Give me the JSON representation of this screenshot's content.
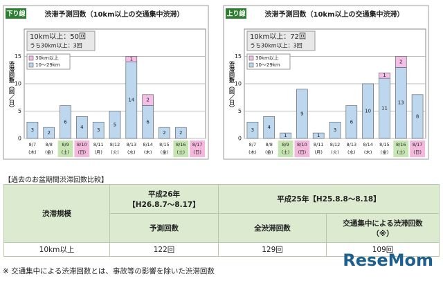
{
  "chart_data": [
    {
      "type": "bar",
      "stacked": true,
      "badge": "下り線",
      "title": "渋滞予測回数（10km以上の交通集中渋滞）",
      "summary": [
        "10km以上：50回",
        "うち30km以上：3回"
      ],
      "ylabel": "渋滞回数（回／日）",
      "categories": [
        "8/7",
        "8/8",
        "8/9",
        "8/10",
        "8/11",
        "8/12",
        "8/13",
        "8/14",
        "8/15",
        "8/16",
        "8/17"
      ],
      "weekdays": [
        "(木)",
        "(金)",
        "(土)",
        "(日)",
        "(月)",
        "(火)",
        "(水)",
        "(木)",
        "(金)",
        "(土)",
        "(日)"
      ],
      "category_colors": [
        null,
        null,
        "#c6e5b3",
        "#f4b8dd",
        null,
        null,
        null,
        null,
        null,
        "#c6e5b3",
        "#f4b8dd"
      ],
      "series": [
        {
          "name": "10～29km",
          "color": "#bdd7ee",
          "values": [
            3,
            2,
            6,
            4,
            3,
            5,
            14,
            6,
            2,
            2,
            0
          ]
        },
        {
          "name": "30km以上",
          "color": "#f4bfe6",
          "values": [
            0,
            0,
            0,
            0,
            0,
            0,
            1,
            2,
            0,
            0,
            0
          ]
        }
      ],
      "ylim": [
        0,
        20
      ],
      "yticks": [
        0,
        5,
        10,
        15
      ],
      "grid": true
    },
    {
      "type": "bar",
      "stacked": true,
      "badge": "上り線",
      "title": "渋滞予測回数（10km以上の交通集中渋滞）",
      "summary": [
        "10km以上：72回",
        "うち30km以上：3回"
      ],
      "ylabel": "渋滞回数（回／日）",
      "categories": [
        "8/7",
        "8/8",
        "8/9",
        "8/10",
        "8/11",
        "8/12",
        "8/13",
        "8/14",
        "8/15",
        "8/16",
        "8/17"
      ],
      "weekdays": [
        "(木)",
        "(金)",
        "(土)",
        "(日)",
        "(月)",
        "(火)",
        "(水)",
        "(木)",
        "(金)",
        "(土)",
        "(日)"
      ],
      "category_colors": [
        null,
        null,
        "#c6e5b3",
        "#f4b8dd",
        null,
        null,
        null,
        null,
        null,
        "#c6e5b3",
        "#f4b8dd"
      ],
      "series": [
        {
          "name": "10～29km",
          "color": "#bdd7ee",
          "values": [
            3,
            4,
            1,
            9,
            1,
            3,
            6,
            10,
            11,
            13,
            8
          ]
        },
        {
          "name": "30km以上",
          "color": "#f4bfe6",
          "values": [
            0,
            0,
            0,
            0,
            0,
            0,
            0,
            0,
            1,
            2,
            0
          ]
        }
      ],
      "ylim": [
        0,
        20
      ],
      "yticks": [
        0,
        5,
        10,
        15
      ],
      "grid": true
    }
  ],
  "table": {
    "caption": "【過去のお盆期間渋滞回数比較】",
    "scale": "渋滞規模",
    "h26": [
      "平成26年",
      "【H26.8.7～8.17】"
    ],
    "h26_col": "予測回数",
    "h25": "平成25年【H25.8.8～8.18】",
    "h25_col1": "全渋滞回数",
    "h25_col2": [
      "交通集中による渋滞回数",
      "（※）"
    ],
    "rows": [
      [
        "10km以上",
        "122回",
        "129回",
        "109回"
      ]
    ]
  },
  "footnote": "※ 交通集中による渋滞回数とは、事故等の影響を除いた渋滞回数",
  "watermark": "ReseMom"
}
